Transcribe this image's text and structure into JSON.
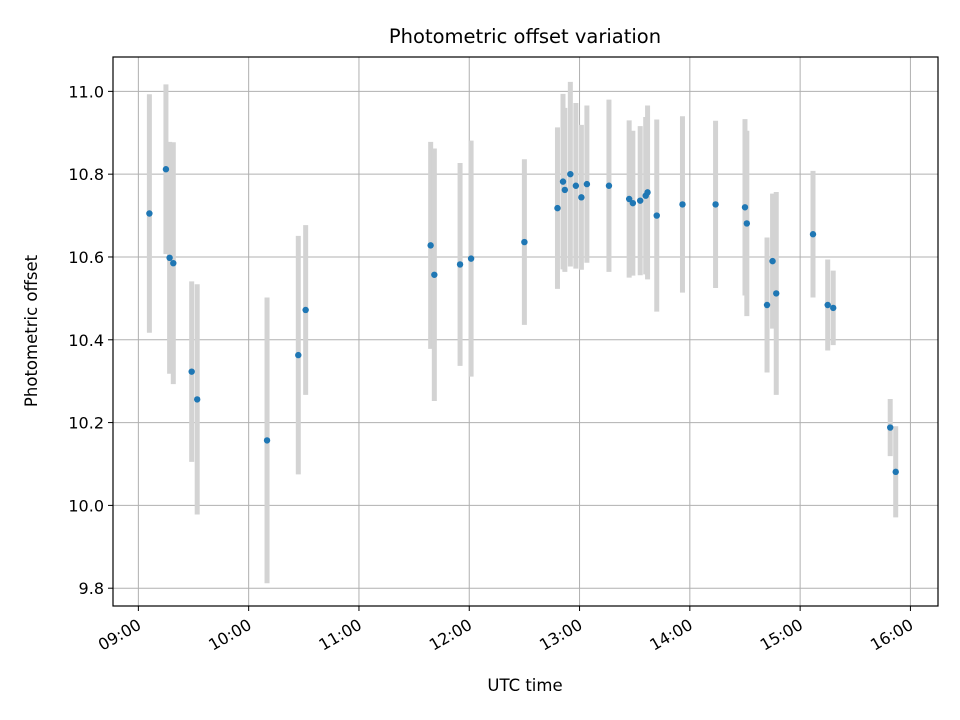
{
  "chart_data": {
    "type": "scatter",
    "title": "Photometric offset variation",
    "xlabel": "UTC time",
    "ylabel": "Photometric offset",
    "grid": true,
    "x_tick_labels": [
      "09:00",
      "10:00",
      "11:00",
      "12:00",
      "13:00",
      "14:00",
      "15:00",
      "16:00"
    ],
    "x_ticks_hours": [
      9,
      10,
      11,
      12,
      13,
      14,
      15,
      16
    ],
    "xlim_hours": [
      8.77,
      16.25
    ],
    "y_tick_labels": [
      "9.8",
      "10.0",
      "10.2",
      "10.4",
      "10.6",
      "10.8",
      "11.0"
    ],
    "y_ticks": [
      9.8,
      10.0,
      10.2,
      10.4,
      10.6,
      10.8,
      11.0
    ],
    "ylim": [
      9.757,
      11.083
    ],
    "point_color": "#1f77b4",
    "errorbar_color": "#d3d3d3",
    "points": [
      {
        "x": "09:06",
        "y": 10.705,
        "yerr": 0.288
      },
      {
        "x": "09:15",
        "y": 10.812,
        "yerr": 0.205
      },
      {
        "x": "09:17",
        "y": 10.598,
        "yerr": 0.28
      },
      {
        "x": "09:19",
        "y": 10.585,
        "yerr": 0.292
      },
      {
        "x": "09:29",
        "y": 10.323,
        "yerr": 0.218
      },
      {
        "x": "09:32",
        "y": 10.256,
        "yerr": 0.278
      },
      {
        "x": "10:10",
        "y": 10.157,
        "yerr": 0.345
      },
      {
        "x": "10:27",
        "y": 10.363,
        "yerr": 0.288
      },
      {
        "x": "10:31",
        "y": 10.472,
        "yerr": 0.205
      },
      {
        "x": "11:39",
        "y": 10.628,
        "yerr": 0.25
      },
      {
        "x": "11:41",
        "y": 10.557,
        "yerr": 0.305
      },
      {
        "x": "11:55",
        "y": 10.582,
        "yerr": 0.245
      },
      {
        "x": "12:01",
        "y": 10.596,
        "yerr": 0.285
      },
      {
        "x": "12:30",
        "y": 10.636,
        "yerr": 0.2
      },
      {
        "x": "12:48",
        "y": 10.718,
        "yerr": 0.195
      },
      {
        "x": "12:51",
        "y": 10.782,
        "yerr": 0.212
      },
      {
        "x": "12:52",
        "y": 10.762,
        "yerr": 0.198
      },
      {
        "x": "12:55",
        "y": 10.8,
        "yerr": 0.223
      },
      {
        "x": "12:58",
        "y": 10.772,
        "yerr": 0.2
      },
      {
        "x": "13:01",
        "y": 10.744,
        "yerr": 0.175
      },
      {
        "x": "13:04",
        "y": 10.776,
        "yerr": 0.19
      },
      {
        "x": "13:16",
        "y": 10.772,
        "yerr": 0.208
      },
      {
        "x": "13:27",
        "y": 10.74,
        "yerr": 0.19
      },
      {
        "x": "13:29",
        "y": 10.73,
        "yerr": 0.175
      },
      {
        "x": "13:33",
        "y": 10.736,
        "yerr": 0.18
      },
      {
        "x": "13:36",
        "y": 10.748,
        "yerr": 0.19
      },
      {
        "x": "13:37",
        "y": 10.756,
        "yerr": 0.21
      },
      {
        "x": "13:42",
        "y": 10.7,
        "yerr": 0.232
      },
      {
        "x": "13:56",
        "y": 10.727,
        "yerr": 0.213
      },
      {
        "x": "14:14",
        "y": 10.727,
        "yerr": 0.202
      },
      {
        "x": "14:30",
        "y": 10.72,
        "yerr": 0.213
      },
      {
        "x": "14:31",
        "y": 10.681,
        "yerr": 0.224
      },
      {
        "x": "14:42",
        "y": 10.484,
        "yerr": 0.163
      },
      {
        "x": "14:45",
        "y": 10.59,
        "yerr": 0.163
      },
      {
        "x": "14:47",
        "y": 10.512,
        "yerr": 0.245
      },
      {
        "x": "15:07",
        "y": 10.655,
        "yerr": 0.153
      },
      {
        "x": "15:15",
        "y": 10.484,
        "yerr": 0.11
      },
      {
        "x": "15:18",
        "y": 10.477,
        "yerr": 0.09
      },
      {
        "x": "15:49",
        "y": 10.188,
        "yerr": 0.069
      },
      {
        "x": "15:52",
        "y": 10.081,
        "yerr": 0.11
      }
    ]
  }
}
